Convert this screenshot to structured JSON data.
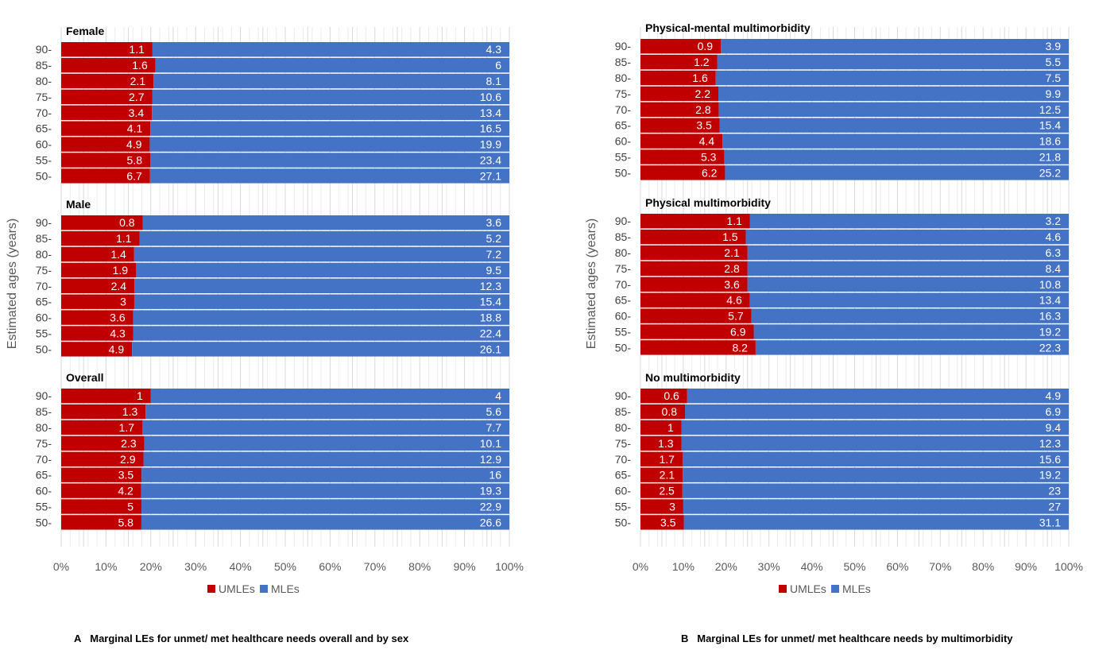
{
  "colors": {
    "umle": "#c00000",
    "mle": "#4472c4",
    "grid": "#d9d9d9"
  },
  "chart_data": [
    {
      "type": "bar",
      "stacked": "percent",
      "orientation": "horizontal",
      "caption_letter": "A",
      "caption": "Marginal LEs for unmet/ met healthcare needs overall and by sex",
      "ylabel": "Estimated ages (years)",
      "x_ticks": [
        "0%",
        "10%",
        "20%",
        "30%",
        "40%",
        "50%",
        "60%",
        "70%",
        "80%",
        "90%",
        "100%"
      ],
      "xlim": [
        0,
        100
      ],
      "legend": [
        "UMLEs",
        "MLEs"
      ],
      "legend_position": "bottom",
      "categories": [
        "90-",
        "85-",
        "80-",
        "75-",
        "70-",
        "65-",
        "60-",
        "55-",
        "50-"
      ],
      "groups": [
        {
          "title": "Female",
          "umle": [
            1.1,
            1.6,
            2.1,
            2.7,
            3.4,
            4.1,
            4.9,
            5.8,
            6.7
          ],
          "mle": [
            4.3,
            6,
            8.1,
            10.6,
            13.4,
            16.5,
            19.9,
            23.4,
            27.1
          ]
        },
        {
          "title": "Male",
          "umle": [
            0.8,
            1.1,
            1.4,
            1.9,
            2.4,
            3,
            3.6,
            4.3,
            4.9
          ],
          "mle": [
            3.6,
            5.2,
            7.2,
            9.5,
            12.3,
            15.4,
            18.8,
            22.4,
            26.1
          ]
        },
        {
          "title": "Overall",
          "umle": [
            1,
            1.3,
            1.7,
            2.3,
            2.9,
            3.5,
            4.2,
            5,
            5.8
          ],
          "mle": [
            4,
            5.6,
            7.7,
            10.1,
            12.9,
            16,
            19.3,
            22.9,
            26.6
          ]
        }
      ]
    },
    {
      "type": "bar",
      "stacked": "percent",
      "orientation": "horizontal",
      "caption_letter": "B",
      "caption": "Marginal LEs for unmet/ met healthcare needs by multimorbidity",
      "ylabel": "Estimated ages (years)",
      "x_ticks": [
        "0%",
        "10%",
        "20%",
        "30%",
        "40%",
        "50%",
        "60%",
        "70%",
        "80%",
        "90%",
        "100%"
      ],
      "xlim": [
        0,
        100
      ],
      "legend": [
        "UMLEs",
        "MLEs"
      ],
      "legend_position": "bottom",
      "categories": [
        "90-",
        "85-",
        "80-",
        "75-",
        "70-",
        "65-",
        "60-",
        "55-",
        "50-"
      ],
      "groups": [
        {
          "title": "Physical-mental multimorbidity",
          "umle": [
            0.9,
            1.2,
            1.6,
            2.2,
            2.8,
            3.5,
            4.4,
            5.3,
            6.2
          ],
          "mle": [
            3.9,
            5.5,
            7.5,
            9.9,
            12.5,
            15.4,
            18.6,
            21.8,
            25.2
          ]
        },
        {
          "title": "Physical multimorbidity",
          "umle": [
            1.1,
            1.5,
            2.1,
            2.8,
            3.6,
            4.6,
            5.7,
            6.9,
            8.2
          ],
          "mle": [
            3.2,
            4.6,
            6.3,
            8.4,
            10.8,
            13.4,
            16.3,
            19.2,
            22.3
          ]
        },
        {
          "title": "No multimorbidity",
          "umle": [
            0.6,
            0.8,
            1,
            1.3,
            1.7,
            2.1,
            2.5,
            3,
            3.5
          ],
          "mle": [
            4.9,
            6.9,
            9.4,
            12.3,
            15.6,
            19.2,
            23,
            27,
            31.1
          ]
        }
      ]
    }
  ]
}
